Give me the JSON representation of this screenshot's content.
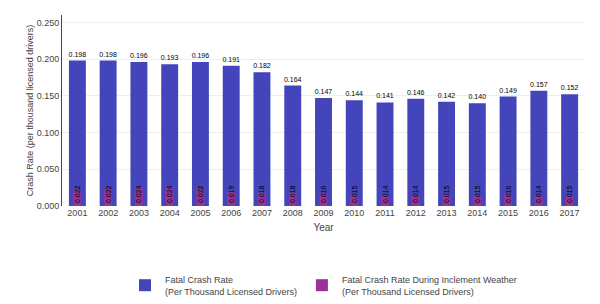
{
  "chart_data": {
    "type": "bar",
    "x_label": "Year",
    "y_label": "Crash Rate (per thousand licensed drivers)",
    "categories": [
      "2001",
      "2002",
      "2003",
      "2004",
      "2005",
      "2006",
      "2007",
      "2008",
      "2009",
      "2010",
      "2011",
      "2012",
      "2013",
      "2014",
      "2015",
      "2016",
      "2017"
    ],
    "series": [
      {
        "name": "Fatal Crash Rate\n(Per Thousand Licensed Drivers)",
        "color": "#4444BB",
        "values": [
          0.198,
          0.198,
          0.196,
          0.193,
          0.196,
          0.191,
          0.182,
          0.164,
          0.147,
          0.144,
          0.141,
          0.146,
          0.142,
          0.14,
          0.149,
          0.157,
          0.152
        ],
        "value_labels": [
          "0.198",
          "0.198",
          "0.196",
          "0.193",
          "0.196",
          "0.191",
          "0.182",
          "0.164",
          "0.147",
          "0.144",
          "0.141",
          "0.146",
          "0.142",
          "0.140",
          "0.149",
          "0.157",
          "0.152"
        ]
      },
      {
        "name": "Fatal Crash Rate During Inclement Weather\n(Per Thousand Licensed Drivers)",
        "color": "#993399",
        "values": [
          0.022,
          0.022,
          0.024,
          0.024,
          0.022,
          0.019,
          0.018,
          0.018,
          0.016,
          0.015,
          0.014,
          0.014,
          0.015,
          0.015,
          0.016,
          0.014,
          0.015
        ],
        "value_labels": [
          "0.022",
          "0.022",
          "0.024",
          "0.024",
          "0.022",
          "0.019",
          "0.018",
          "0.018",
          "0.016",
          "0.015",
          "0.014",
          "0.014",
          "0.015",
          "0.015",
          "0.016",
          "0.014",
          "0.015"
        ]
      }
    ],
    "ylim": [
      0,
      0.26
    ],
    "yticks": [
      {
        "value": 0.0,
        "label": "0.000"
      },
      {
        "value": 0.05,
        "label": "0.050"
      },
      {
        "value": 0.1,
        "label": "0.100"
      },
      {
        "value": 0.15,
        "label": "0.150"
      },
      {
        "value": 0.2,
        "label": "0.200"
      },
      {
        "value": 0.25,
        "label": "0.250"
      }
    ],
    "grid": true,
    "legend": "bottom",
    "data_labels": true
  }
}
